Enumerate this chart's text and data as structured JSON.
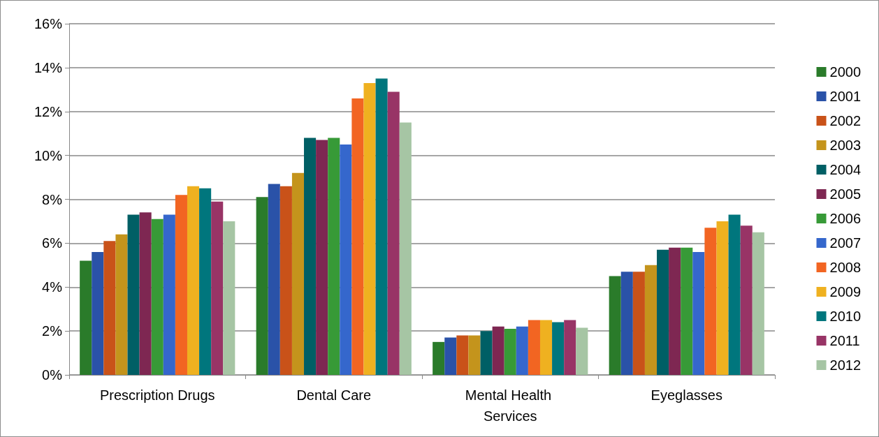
{
  "chart_data": {
    "type": "bar",
    "categories": [
      "Prescription Drugs",
      "Dental Care",
      "Mental Health Services",
      "Eyeglasses"
    ],
    "series": [
      {
        "name": "2000",
        "color": "#2a7b2a",
        "values": [
          5.2,
          8.1,
          1.5,
          4.5
        ]
      },
      {
        "name": "2001",
        "color": "#2a52a8",
        "values": [
          5.6,
          8.7,
          1.7,
          4.7
        ]
      },
      {
        "name": "2002",
        "color": "#c95219",
        "values": [
          6.1,
          8.6,
          1.8,
          4.7
        ]
      },
      {
        "name": "2003",
        "color": "#c4941c",
        "values": [
          6.4,
          9.2,
          1.8,
          5.0
        ]
      },
      {
        "name": "2004",
        "color": "#005f65",
        "values": [
          7.3,
          10.8,
          2.0,
          5.7
        ]
      },
      {
        "name": "2005",
        "color": "#7e2752",
        "values": [
          7.4,
          10.7,
          2.2,
          5.8
        ]
      },
      {
        "name": "2006",
        "color": "#379a37",
        "values": [
          7.1,
          10.8,
          2.1,
          5.8
        ]
      },
      {
        "name": "2007",
        "color": "#3567cc",
        "values": [
          7.3,
          10.5,
          2.2,
          5.6
        ]
      },
      {
        "name": "2008",
        "color": "#f26522",
        "values": [
          8.2,
          12.6,
          2.5,
          6.7
        ]
      },
      {
        "name": "2009",
        "color": "#efb120",
        "values": [
          8.6,
          13.3,
          2.5,
          7.0
        ]
      },
      {
        "name": "2010",
        "color": "#00767d",
        "values": [
          8.5,
          13.5,
          2.4,
          7.3
        ]
      },
      {
        "name": "2011",
        "color": "#983466",
        "values": [
          7.9,
          12.9,
          2.5,
          6.8
        ]
      },
      {
        "name": "2012",
        "color": "#a6c5a4",
        "values": [
          7.0,
          11.5,
          2.15,
          6.5
        ]
      }
    ],
    "ylim": [
      0,
      16
    ],
    "yticks": [
      {
        "value": 0,
        "label": "0%"
      },
      {
        "value": 2,
        "label": "2%"
      },
      {
        "value": 4,
        "label": "4%"
      },
      {
        "value": 6,
        "label": "6%"
      },
      {
        "value": 8,
        "label": "8%"
      },
      {
        "value": 10,
        "label": "10%"
      },
      {
        "value": 12,
        "label": "12%"
      },
      {
        "value": 14,
        "label": "14%"
      },
      {
        "value": 16,
        "label": "16%"
      }
    ],
    "grid": "y",
    "legend": "right"
  }
}
